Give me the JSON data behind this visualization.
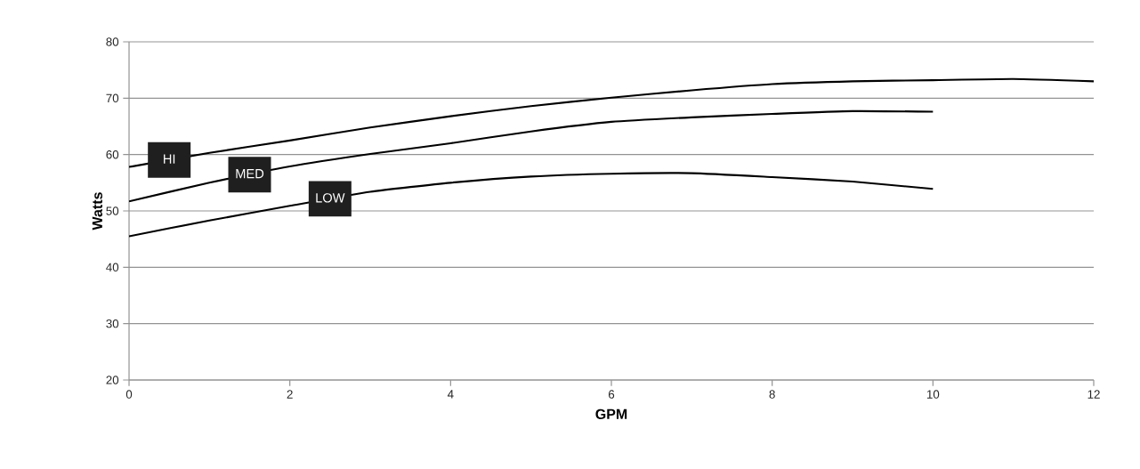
{
  "chart_data": {
    "type": "line",
    "xlabel": "GPM",
    "ylabel": "Watts",
    "xlim": [
      0,
      12
    ],
    "ylim": [
      20,
      80
    ],
    "xticks": [
      0,
      2,
      4,
      6,
      8,
      10,
      12
    ],
    "yticks": [
      20,
      30,
      40,
      50,
      60,
      70,
      80
    ],
    "grid": "y",
    "legend": false,
    "marker": "none",
    "line_style": "solid",
    "series": [
      {
        "name": "HI",
        "color": "#000000",
        "x": [
          0,
          1,
          2,
          3,
          4,
          5,
          6,
          7,
          8,
          9,
          10,
          11,
          12
        ],
        "values": [
          57.8,
          60.3,
          62.5,
          64.8,
          66.8,
          68.6,
          70.1,
          71.4,
          72.5,
          73.0,
          73.2,
          73.4,
          73.0
        ]
      },
      {
        "name": "MED",
        "color": "#000000",
        "x": [
          0,
          1,
          2,
          3,
          4,
          5,
          6,
          7,
          8,
          9,
          10
        ],
        "values": [
          51.7,
          55.0,
          57.9,
          60.1,
          62.0,
          64.1,
          65.8,
          66.6,
          67.2,
          67.7,
          67.6
        ]
      },
      {
        "name": "LOW",
        "color": "#000000",
        "x": [
          0,
          1,
          2,
          3,
          4,
          5,
          6,
          7,
          8,
          9,
          10
        ],
        "values": [
          45.5,
          48.3,
          50.9,
          53.4,
          55.0,
          56.1,
          56.6,
          56.7,
          56.0,
          55.2,
          53.9
        ]
      }
    ]
  }
}
